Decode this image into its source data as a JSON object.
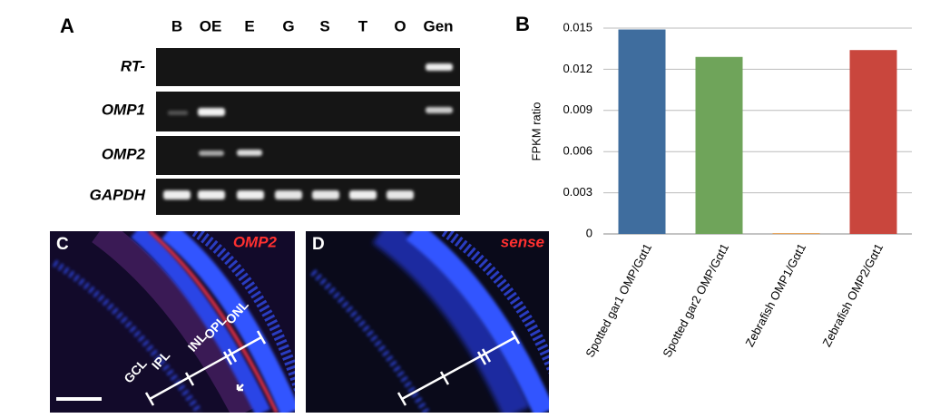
{
  "panel_a": {
    "label": "A",
    "lanes": [
      "B",
      "OE",
      "E",
      "G",
      "S",
      "T",
      "O",
      "Gen"
    ],
    "rows": [
      "RT-",
      "OMP1",
      "OMP2",
      "GAPDH"
    ]
  },
  "chart_data": {
    "type": "bar",
    "label": "B",
    "y_label": "FPKM ratio",
    "categories": [
      "Spotted gar1 OMP/Gαt1",
      "Spotted gar2 OMP/Gαt1",
      "Zebrafish OMP1/Gαt1",
      "Zebrafish OMP2/Gαt1"
    ],
    "values": [
      0.0149,
      0.0129,
      5e-05,
      0.0134
    ],
    "colors": [
      "#3f6d9e",
      "#6fa45a",
      "#e08a2c",
      "#c9463d"
    ],
    "ylim": [
      0,
      0.015
    ],
    "yticks": [
      0,
      0.003,
      0.006,
      0.009,
      0.012,
      0.015
    ],
    "grid": true
  },
  "panel_c": {
    "label": "C",
    "stain": "OMP2",
    "layers": [
      "GCL",
      "IPL",
      "INL",
      "OPL",
      "ONL"
    ]
  },
  "panel_d": {
    "label": "D",
    "stain": "sense"
  }
}
